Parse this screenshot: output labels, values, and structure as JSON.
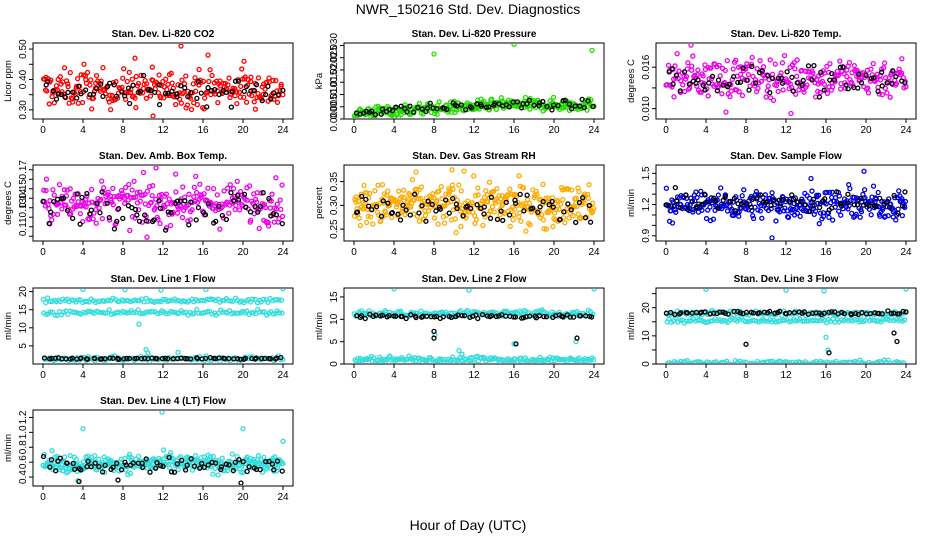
{
  "title": "NWR_150216  Std. Dev. Diagnostics",
  "xlabel": "Hour of Day (UTC)",
  "chart_data": [
    {
      "type": "scatter",
      "title": "Stan. Dev. Li-820 CO2",
      "ylabel": "Licor ppm",
      "xlim": [
        0,
        24
      ],
      "ylim": [
        0.27,
        0.52
      ],
      "xticks": [
        0,
        4,
        8,
        12,
        16,
        20,
        24
      ],
      "yticks": [
        0.3,
        0.35,
        0.4,
        0.45,
        0.5
      ],
      "ytick_labels": [
        "0.30",
        "",
        "0.40",
        "",
        "0.50"
      ],
      "series": [
        {
          "color": "#ff0000",
          "center": 0.37,
          "spread": 0.03,
          "n": 260,
          "outliers": [
            [
              4.1,
              0.45
            ],
            [
              9.2,
              0.47
            ],
            [
              13.8,
              0.51
            ],
            [
              16.5,
              0.48
            ],
            [
              20.1,
              0.46
            ],
            [
              11.0,
              0.28
            ]
          ]
        },
        {
          "color": "#000000",
          "center": 0.36,
          "spread": 0.02,
          "n": 70,
          "outliers": []
        }
      ]
    },
    {
      "type": "scatter",
      "title": "Stan. Dev. Li-820 Pressure",
      "ylabel": "kPa",
      "xlim": [
        0,
        24
      ],
      "ylim": [
        0,
        0.031
      ],
      "xticks": [
        0,
        4,
        8,
        12,
        16,
        20,
        24
      ],
      "yticks": [
        0.0,
        0.005,
        0.01,
        0.015,
        0.02,
        0.025,
        0.03
      ],
      "ytick_labels": [
        "0.000",
        "0.005",
        "0.010",
        "0.015",
        "0.020",
        "0.025",
        "0.030"
      ],
      "series": [
        {
          "color": "#22dd00",
          "trend": [
            0.0025,
            0.0058
          ],
          "spread": 0.0012,
          "n": 300,
          "outliers": [
            [
              8,
              0.0265
            ],
            [
              16,
              0.0305
            ],
            [
              23.8,
              0.028
            ]
          ]
        },
        {
          "color": "#000000",
          "trend": [
            0.003,
            0.0058
          ],
          "spread": 0.0009,
          "n": 70,
          "outliers": []
        }
      ]
    },
    {
      "type": "scatter",
      "title": "Stan. Dev. Li-820 Temp.",
      "ylabel": "degrees C",
      "xlim": [
        0,
        24
      ],
      "ylim": [
        0.0085,
        0.0195
      ],
      "xticks": [
        0,
        4,
        8,
        12,
        16,
        20,
        24
      ],
      "yticks": [
        0.01,
        0.013,
        0.016
      ],
      "ytick_labels": [
        "0.010",
        "",
        "0.016"
      ],
      "series": [
        {
          "color": "#ee00ee",
          "center": 0.0145,
          "spread": 0.0014,
          "n": 280,
          "outliers": [
            [
              2.5,
              0.0192
            ],
            [
              6.0,
              0.0095
            ],
            [
              12.5,
              0.0093
            ]
          ]
        },
        {
          "color": "#000000",
          "center": 0.0142,
          "spread": 0.0012,
          "n": 70,
          "outliers": []
        }
      ]
    },
    {
      "type": "scatter",
      "title": "Stan. Dev. Amb. Box Temp.",
      "ylabel": "degrees C",
      "xlim": [
        0,
        24
      ],
      "ylim": [
        0.095,
        0.175
      ],
      "xticks": [
        0,
        4,
        8,
        12,
        16,
        20,
        24
      ],
      "yticks": [
        0.1,
        0.11,
        0.12,
        0.13,
        0.14,
        0.15,
        0.16,
        0.17
      ],
      "ytick_labels": [
        "",
        "0.11",
        "",
        "0.13",
        "0.14",
        "0.15",
        "",
        "0.17"
      ],
      "series": [
        {
          "color": "#ee00ee",
          "center": 0.135,
          "spread": 0.011,
          "n": 280,
          "outliers": [
            [
              11.3,
              0.172
            ],
            [
              10.4,
              0.099
            ]
          ]
        },
        {
          "color": "#000000",
          "center": 0.13,
          "spread": 0.01,
          "n": 70,
          "outliers": []
        }
      ]
    },
    {
      "type": "scatter",
      "title": "Stan. Dev. Gas Stream RH",
      "ylabel": "percent",
      "xlim": [
        0,
        24
      ],
      "ylim": [
        0.225,
        0.385
      ],
      "xticks": [
        0,
        4,
        8,
        12,
        16,
        20,
        24
      ],
      "yticks": [
        0.25,
        0.3,
        0.35
      ],
      "ytick_labels": [
        "0.25",
        "0.30",
        "0.35"
      ],
      "series": [
        {
          "color": "#ffaa00",
          "center": 0.3,
          "spread": 0.022,
          "n": 360,
          "outliers": [
            [
              6.2,
              0.37
            ],
            [
              9.8,
              0.375
            ],
            [
              11.0,
              0.372
            ]
          ]
        },
        {
          "color": "#000000",
          "center": 0.295,
          "spread": 0.017,
          "n": 70,
          "outliers": []
        }
      ]
    },
    {
      "type": "scatter",
      "title": "Stan. Dev. Sample Flow",
      "ylabel": "ml/min",
      "xlim": [
        0,
        24
      ],
      "ylim": [
        0.85,
        1.58
      ],
      "xticks": [
        0,
        4,
        8,
        12,
        16,
        20,
        24
      ],
      "yticks": [
        0.9,
        1.0,
        1.1,
        1.2,
        1.3,
        1.4,
        1.5
      ],
      "ytick_labels": [
        "0.9",
        "",
        "",
        "1.2",
        "",
        "",
        "1.5"
      ],
      "series": [
        {
          "color": "#0000dd",
          "center": 1.2,
          "spread": 0.07,
          "n": 320,
          "outliers": [
            [
              10.6,
              0.88
            ],
            [
              19.8,
              1.52
            ],
            [
              14.5,
              1.45
            ]
          ]
        },
        {
          "color": "#000000",
          "center": 1.22,
          "spread": 0.05,
          "n": 70,
          "outliers": []
        }
      ]
    },
    {
      "type": "scatter",
      "title": "Stan. Dev. Line 1 Flow",
      "ylabel": "ml/min",
      "xlim": [
        0,
        24
      ],
      "ylim": [
        0,
        21
      ],
      "xticks": [
        0,
        4,
        8,
        12,
        16,
        20,
        24
      ],
      "yticks": [
        5,
        10,
        15,
        20
      ],
      "ytick_labels": [
        "5",
        "10",
        "15",
        "20"
      ],
      "series": [
        {
          "color": "#33dddd",
          "bands": [
            17.5,
            14.2,
            1.5
          ],
          "spread": 0.35,
          "n": 330,
          "outliers": [
            [
              4,
              20.6
            ],
            [
              8.2,
              20.5
            ],
            [
              11.8,
              20.4
            ],
            [
              16.3,
              20.6
            ],
            [
              24,
              20.8
            ],
            [
              10.3,
              4
            ],
            [
              10.5,
              3
            ],
            [
              9.6,
              11
            ],
            [
              13.5,
              3.2
            ]
          ]
        },
        {
          "color": "#000000",
          "bands": [
            1.5
          ],
          "spread": 0.1,
          "n": 70,
          "outliers": []
        }
      ]
    },
    {
      "type": "scatter",
      "title": "Stan. Dev. Line 2 Flow",
      "ylabel": "ml/min",
      "xlim": [
        0,
        24
      ],
      "ylim": [
        0,
        17
      ],
      "xticks": [
        0,
        4,
        8,
        12,
        16,
        20,
        24
      ],
      "yticks": [
        0,
        5,
        10,
        15
      ],
      "ytick_labels": [
        "0",
        "5",
        "10",
        "15"
      ],
      "series": [
        {
          "color": "#33dddd",
          "bands": [
            11.3,
            1.0
          ],
          "spread": 0.35,
          "n": 330,
          "outliers": [
            [
              4,
              16.8
            ],
            [
              11.5,
              16.5
            ],
            [
              24,
              16.8
            ],
            [
              10.5,
              3
            ],
            [
              10.8,
              2.2
            ],
            [
              8.1,
              6.5
            ],
            [
              16,
              4.5
            ],
            [
              22.2,
              5
            ]
          ]
        },
        {
          "color": "#000000",
          "bands": [
            10.6
          ],
          "spread": 0.25,
          "n": 70,
          "outliers": [
            [
              8,
              7.3
            ],
            [
              8,
              5.8
            ],
            [
              16.2,
              4.5
            ],
            [
              22.3,
              5.8
            ]
          ]
        }
      ]
    },
    {
      "type": "scatter",
      "title": "Stan. Dev. Line 3 Flow",
      "ylabel": "ml/min",
      "xlim": [
        0,
        24
      ],
      "ylim": [
        0,
        27
      ],
      "xticks": [
        0,
        4,
        8,
        12,
        16,
        20,
        24
      ],
      "yticks": [
        0,
        5,
        10,
        15,
        20,
        25
      ],
      "ytick_labels": [
        "0",
        "",
        "10",
        "",
        "20",
        ""
      ],
      "series": [
        {
          "color": "#33dddd",
          "bands": [
            18.0,
            15.5,
            0.5
          ],
          "spread": 0.4,
          "n": 330,
          "outliers": [
            [
              4,
              26.5
            ],
            [
              12,
              26.2
            ],
            [
              15.8,
              26
            ],
            [
              24,
              26.6
            ],
            [
              16,
              9.5
            ],
            [
              16.2,
              5
            ]
          ]
        },
        {
          "color": "#000000",
          "bands": [
            18.2
          ],
          "spread": 0.3,
          "n": 70,
          "outliers": [
            [
              8,
              7
            ],
            [
              16.3,
              4
            ],
            [
              22.8,
              11
            ],
            [
              23.1,
              8
            ],
            [
              24,
              18.5
            ]
          ]
        }
      ]
    },
    {
      "type": "scatter",
      "title": "Stan. Dev. Line 4 (LT) Flow",
      "ylabel": "ml/min",
      "xlim": [
        0,
        24
      ],
      "ylim": [
        0.28,
        1.3
      ],
      "xticks": [
        0,
        4,
        8,
        12,
        16,
        20,
        24
      ],
      "yticks": [
        0.4,
        0.6,
        0.8,
        1.0,
        1.2
      ],
      "ytick_labels": [
        "0.4",
        "0.6",
        "0.8",
        "1.0",
        "1.2"
      ],
      "series": [
        {
          "color": "#33dddd",
          "center": 0.58,
          "spread": 0.06,
          "n": 320,
          "outliers": [
            [
              4,
              1.05
            ],
            [
              11.9,
              1.27
            ],
            [
              20,
              1.05
            ],
            [
              24,
              0.88
            ],
            [
              3.5,
              0.35
            ]
          ]
        },
        {
          "color": "#000000",
          "center": 0.56,
          "spread": 0.05,
          "n": 70,
          "outliers": [
            [
              3.6,
              0.34
            ],
            [
              7.5,
              0.36
            ],
            [
              19.8,
              0.32
            ]
          ]
        }
      ]
    }
  ]
}
